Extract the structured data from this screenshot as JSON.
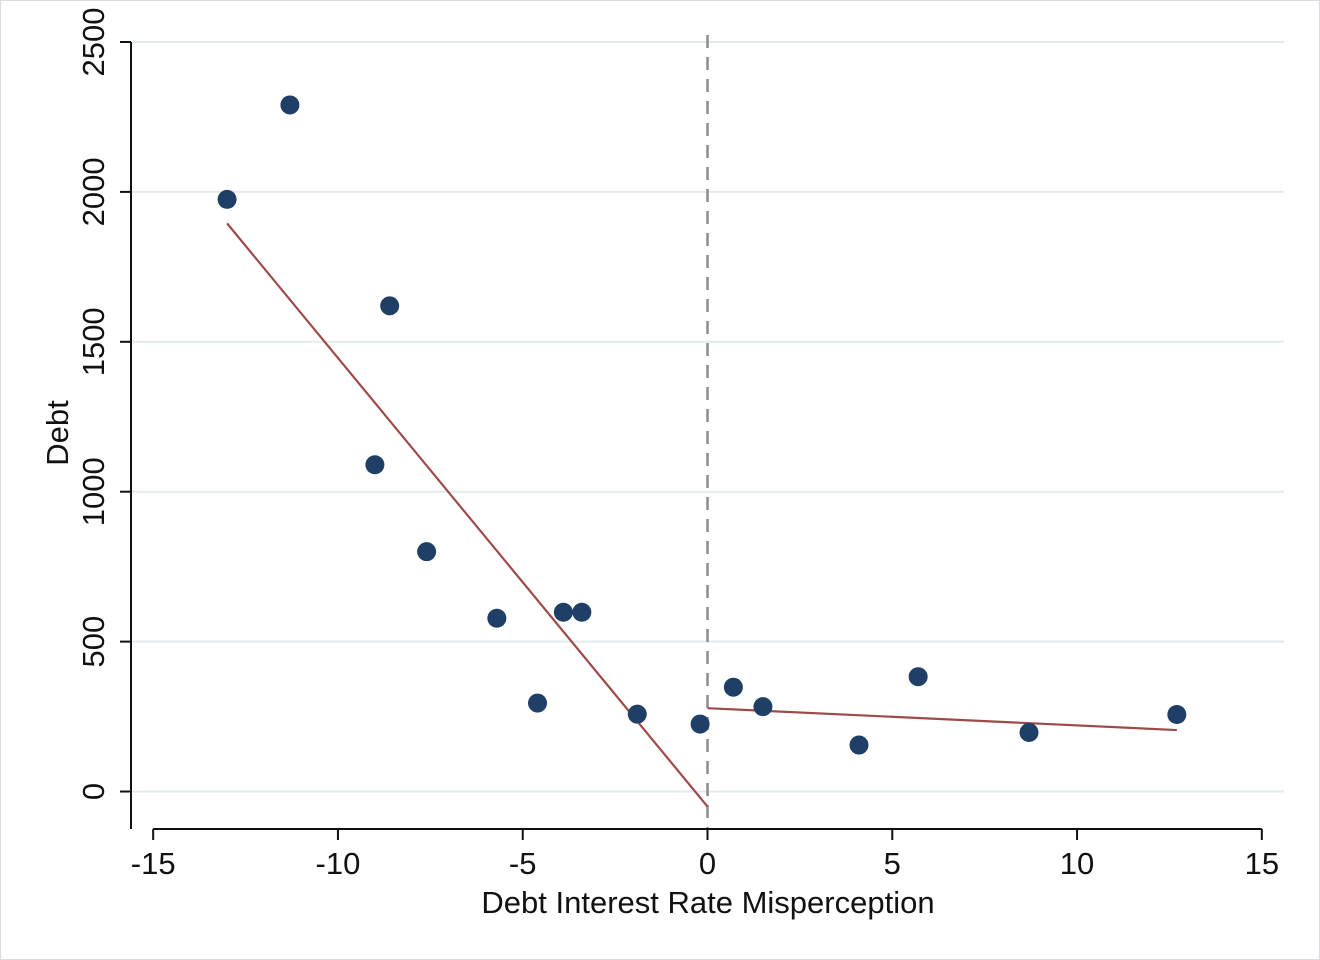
{
  "chart_data": {
    "type": "scatter",
    "xlabel": "Debt Interest Rate Misperception",
    "ylabel": "Debt",
    "xlim": [
      -15.6,
      15.6
    ],
    "ylim": [
      -125,
      2570
    ],
    "x_ticks": [
      -15,
      -10,
      -5,
      0,
      5,
      10,
      15
    ],
    "x_tick_labels": [
      "-15",
      "-10",
      "-5",
      "0",
      "5",
      "10",
      "15"
    ],
    "y_ticks": [
      0,
      500,
      1000,
      1500,
      2000,
      2500
    ],
    "y_tick_labels": [
      "0",
      "500",
      "1000",
      "1500",
      "2000",
      "2500"
    ],
    "grid": "horizontal",
    "reference_line": {
      "x": 0,
      "style": "dashed",
      "color": "#8c8c8c"
    },
    "points": [
      {
        "x": -13.0,
        "y": 1975
      },
      {
        "x": -11.3,
        "y": 2290
      },
      {
        "x": -8.6,
        "y": 1620
      },
      {
        "x": -9.0,
        "y": 1090
      },
      {
        "x": -7.6,
        "y": 800
      },
      {
        "x": -5.7,
        "y": 578
      },
      {
        "x": -3.9,
        "y": 598
      },
      {
        "x": -3.4,
        "y": 598
      },
      {
        "x": -4.6,
        "y": 295
      },
      {
        "x": -1.9,
        "y": 258
      },
      {
        "x": -0.2,
        "y": 225
      },
      {
        "x": 0.7,
        "y": 348
      },
      {
        "x": 1.5,
        "y": 283
      },
      {
        "x": 4.1,
        "y": 155
      },
      {
        "x": 5.7,
        "y": 383
      },
      {
        "x": 8.7,
        "y": 197
      },
      {
        "x": 12.7,
        "y": 257
      }
    ],
    "fit_lines": [
      {
        "x": [
          -13.0,
          0.0
        ],
        "y": [
          1895,
          -50
        ]
      },
      {
        "x": [
          0.0,
          12.7
        ],
        "y": [
          278,
          205
        ]
      }
    ],
    "colors": {
      "points": "#1f3f66",
      "fit": "#9e4a48",
      "grid": "#e4ebee",
      "axis": "#111111",
      "reference": "#8c8c8c"
    }
  }
}
